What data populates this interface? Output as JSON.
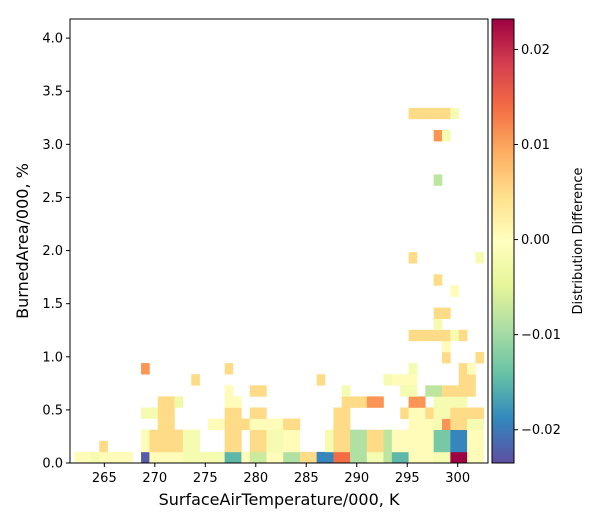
{
  "chart_data": {
    "type": "heatmap",
    "xlabel": "SurfaceAirTemperature/000,  K",
    "ylabel": "BurnedArea/000,  %",
    "colorbar_label": "Distribution Difference",
    "xlim": [
      261.6,
      303.0
    ],
    "ylim": [
      0.0,
      4.18
    ],
    "x_ticks": [
      265,
      270,
      275,
      280,
      285,
      290,
      295,
      300
    ],
    "x_tick_labels": [
      "265",
      "270",
      "275",
      "280",
      "285",
      "290",
      "295",
      "300"
    ],
    "y_ticks": [
      0.0,
      0.5,
      1.0,
      1.5,
      2.0,
      2.5,
      3.0,
      3.5,
      4.0
    ],
    "y_tick_labels": [
      "0.0",
      "0.5",
      "1.0",
      "1.5",
      "2.0",
      "2.5",
      "3.0",
      "3.5",
      "4.0"
    ],
    "colorbar_range": [
      -0.0235,
      0.0232
    ],
    "colorbar_ticks": [
      -0.02,
      -0.01,
      0.0,
      0.01,
      0.02
    ],
    "colorbar_tick_labels": [
      "−0.02",
      "−0.01",
      "0.00",
      "0.01",
      "0.02"
    ],
    "colormap": "Spectral_r",
    "cell_width": 0.828,
    "cell_height": 0.1045,
    "grid": false,
    "cells": [
      {
        "x": 262.014,
        "y": 0.0,
        "v": 0.0005
      },
      {
        "x": 262.842,
        "y": 0.0,
        "v": 0.0005
      },
      {
        "x": 263.67,
        "y": 0.0,
        "v": -0.002
      },
      {
        "x": 264.498,
        "y": 0.0,
        "v": 0.0005
      },
      {
        "x": 265.326,
        "y": 0.0,
        "v": 0.0005
      },
      {
        "x": 266.154,
        "y": 0.0,
        "v": 0.0005
      },
      {
        "x": 266.982,
        "y": 0.0,
        "v": 0.0005
      },
      {
        "x": 268.638,
        "y": 0.0,
        "v": -0.0225
      },
      {
        "x": 269.466,
        "y": 0.0,
        "v": 0.0005
      },
      {
        "x": 270.294,
        "y": 0.0,
        "v": 0.0005
      },
      {
        "x": 271.122,
        "y": 0.0,
        "v": 0.0005
      },
      {
        "x": 271.95,
        "y": 0.0,
        "v": 0.0005
      },
      {
        "x": 272.778,
        "y": 0.0,
        "v": -0.002
      },
      {
        "x": 273.606,
        "y": 0.0,
        "v": -0.002
      },
      {
        "x": 274.434,
        "y": 0.0,
        "v": -0.002
      },
      {
        "x": 275.262,
        "y": 0.0,
        "v": -0.002
      },
      {
        "x": 276.09,
        "y": 0.0,
        "v": -0.002
      },
      {
        "x": 276.918,
        "y": 0.0,
        "v": -0.015
      },
      {
        "x": 277.746,
        "y": 0.0,
        "v": -0.015
      },
      {
        "x": 278.574,
        "y": 0.0,
        "v": 0.0005
      },
      {
        "x": 279.402,
        "y": 0.0,
        "v": -0.007
      },
      {
        "x": 280.23,
        "y": 0.0,
        "v": -0.007
      },
      {
        "x": 281.058,
        "y": 0.0,
        "v": 0.0005
      },
      {
        "x": 281.886,
        "y": 0.0,
        "v": 0.0005
      },
      {
        "x": 282.714,
        "y": 0.0,
        "v": -0.009
      },
      {
        "x": 283.542,
        "y": 0.0,
        "v": -0.009
      },
      {
        "x": 284.37,
        "y": 0.0,
        "v": 0.005
      },
      {
        "x": 285.198,
        "y": 0.0,
        "v": 0.005
      },
      {
        "x": 286.026,
        "y": 0.0,
        "v": -0.019
      },
      {
        "x": 286.854,
        "y": 0.0,
        "v": -0.019
      },
      {
        "x": 287.682,
        "y": 0.0,
        "v": 0.014
      },
      {
        "x": 288.51,
        "y": 0.0,
        "v": 0.014
      },
      {
        "x": 289.338,
        "y": 0.0,
        "v": -0.009
      },
      {
        "x": 290.166,
        "y": 0.0,
        "v": -0.009
      },
      {
        "x": 290.994,
        "y": 0.0,
        "v": -0.002
      },
      {
        "x": 291.822,
        "y": 0.0,
        "v": -0.002
      },
      {
        "x": 292.65,
        "y": 0.0,
        "v": -0.008
      },
      {
        "x": 293.478,
        "y": 0.0,
        "v": -0.015
      },
      {
        "x": 294.306,
        "y": 0.0,
        "v": -0.015
      },
      {
        "x": 295.134,
        "y": 0.0,
        "v": 0.0005
      },
      {
        "x": 295.962,
        "y": 0.0,
        "v": 0.0005
      },
      {
        "x": 296.79,
        "y": 0.0,
        "v": 0.0005
      },
      {
        "x": 297.618,
        "y": 0.0,
        "v": -0.002
      },
      {
        "x": 298.446,
        "y": 0.0,
        "v": -0.002
      },
      {
        "x": 299.274,
        "y": 0.0,
        "v": 0.0232
      },
      {
        "x": 300.102,
        "y": 0.0,
        "v": 0.0232
      },
      {
        "x": 300.93,
        "y": 0.0,
        "v": 0.0005
      },
      {
        "x": 301.758,
        "y": 0.0,
        "v": 0.0005
      },
      {
        "x": 264.498,
        "y": 0.1045,
        "v": 0.005
      },
      {
        "x": 268.638,
        "y": 0.1045,
        "v": 0.0005
      },
      {
        "x": 269.466,
        "y": 0.1045,
        "v": 0.005
      },
      {
        "x": 270.294,
        "y": 0.1045,
        "v": 0.005
      },
      {
        "x": 271.122,
        "y": 0.1045,
        "v": 0.005
      },
      {
        "x": 271.95,
        "y": 0.1045,
        "v": 0.005
      },
      {
        "x": 272.778,
        "y": 0.1045,
        "v": -0.002
      },
      {
        "x": 273.606,
        "y": 0.1045,
        "v": -0.002
      },
      {
        "x": 276.918,
        "y": 0.1045,
        "v": 0.005
      },
      {
        "x": 277.746,
        "y": 0.1045,
        "v": 0.005
      },
      {
        "x": 279.402,
        "y": 0.1045,
        "v": 0.005
      },
      {
        "x": 280.23,
        "y": 0.1045,
        "v": 0.005
      },
      {
        "x": 281.058,
        "y": 0.1045,
        "v": -0.002
      },
      {
        "x": 281.886,
        "y": 0.1045,
        "v": -0.002
      },
      {
        "x": 282.714,
        "y": 0.1045,
        "v": 0.0005
      },
      {
        "x": 283.542,
        "y": 0.1045,
        "v": 0.0005
      },
      {
        "x": 286.854,
        "y": 0.1045,
        "v": -0.002
      },
      {
        "x": 287.682,
        "y": 0.1045,
        "v": 0.005
      },
      {
        "x": 288.51,
        "y": 0.1045,
        "v": 0.005
      },
      {
        "x": 289.338,
        "y": 0.1045,
        "v": -0.009
      },
      {
        "x": 290.166,
        "y": 0.1045,
        "v": -0.009
      },
      {
        "x": 290.994,
        "y": 0.1045,
        "v": 0.005
      },
      {
        "x": 291.822,
        "y": 0.1045,
        "v": 0.005
      },
      {
        "x": 292.65,
        "y": 0.1045,
        "v": -0.008
      },
      {
        "x": 293.478,
        "y": 0.1045,
        "v": 0.0005
      },
      {
        "x": 294.306,
        "y": 0.1045,
        "v": 0.0005
      },
      {
        "x": 295.134,
        "y": 0.1045,
        "v": 0.0005
      },
      {
        "x": 295.962,
        "y": 0.1045,
        "v": 0.0005
      },
      {
        "x": 296.79,
        "y": 0.1045,
        "v": 0.0005
      },
      {
        "x": 297.618,
        "y": 0.1045,
        "v": -0.013
      },
      {
        "x": 298.446,
        "y": 0.1045,
        "v": -0.013
      },
      {
        "x": 299.274,
        "y": 0.1045,
        "v": -0.019
      },
      {
        "x": 300.102,
        "y": 0.1045,
        "v": -0.019
      },
      {
        "x": 300.93,
        "y": 0.1045,
        "v": 0.0005
      },
      {
        "x": 301.758,
        "y": 0.1045,
        "v": 0.0005
      },
      {
        "x": 268.638,
        "y": 0.209,
        "v": 0.0005
      },
      {
        "x": 269.466,
        "y": 0.209,
        "v": 0.005
      },
      {
        "x": 270.294,
        "y": 0.209,
        "v": 0.005
      },
      {
        "x": 271.122,
        "y": 0.209,
        "v": 0.005
      },
      {
        "x": 271.95,
        "y": 0.209,
        "v": 0.005
      },
      {
        "x": 272.778,
        "y": 0.209,
        "v": -0.002
      },
      {
        "x": 273.606,
        "y": 0.209,
        "v": -0.002
      },
      {
        "x": 276.918,
        "y": 0.209,
        "v": 0.005
      },
      {
        "x": 277.746,
        "y": 0.209,
        "v": 0.005
      },
      {
        "x": 279.402,
        "y": 0.209,
        "v": 0.005
      },
      {
        "x": 280.23,
        "y": 0.209,
        "v": 0.005
      },
      {
        "x": 281.058,
        "y": 0.209,
        "v": -0.002
      },
      {
        "x": 281.886,
        "y": 0.209,
        "v": -0.002
      },
      {
        "x": 282.714,
        "y": 0.209,
        "v": 0.0005
      },
      {
        "x": 283.542,
        "y": 0.209,
        "v": 0.0005
      },
      {
        "x": 286.854,
        "y": 0.209,
        "v": -0.002
      },
      {
        "x": 287.682,
        "y": 0.209,
        "v": 0.005
      },
      {
        "x": 288.51,
        "y": 0.209,
        "v": 0.005
      },
      {
        "x": 289.338,
        "y": 0.209,
        "v": -0.009
      },
      {
        "x": 290.166,
        "y": 0.209,
        "v": -0.009
      },
      {
        "x": 290.994,
        "y": 0.209,
        "v": 0.005
      },
      {
        "x": 291.822,
        "y": 0.209,
        "v": 0.005
      },
      {
        "x": 292.65,
        "y": 0.209,
        "v": -0.008
      },
      {
        "x": 293.478,
        "y": 0.209,
        "v": 0.0005
      },
      {
        "x": 294.306,
        "y": 0.209,
        "v": 0.0005
      },
      {
        "x": 295.134,
        "y": 0.209,
        "v": 0.0005
      },
      {
        "x": 295.962,
        "y": 0.209,
        "v": 0.0005
      },
      {
        "x": 296.79,
        "y": 0.209,
        "v": 0.0005
      },
      {
        "x": 297.618,
        "y": 0.209,
        "v": -0.013
      },
      {
        "x": 298.446,
        "y": 0.209,
        "v": -0.013
      },
      {
        "x": 299.274,
        "y": 0.209,
        "v": -0.019
      },
      {
        "x": 300.102,
        "y": 0.209,
        "v": -0.019
      },
      {
        "x": 300.93,
        "y": 0.209,
        "v": 0.0005
      },
      {
        "x": 301.758,
        "y": 0.209,
        "v": 0.0005
      },
      {
        "x": 270.294,
        "y": 0.3135,
        "v": 0.005
      },
      {
        "x": 271.122,
        "y": 0.3135,
        "v": 0.005
      },
      {
        "x": 275.262,
        "y": 0.3135,
        "v": 0.0005
      },
      {
        "x": 276.09,
        "y": 0.3135,
        "v": 0.0005
      },
      {
        "x": 276.918,
        "y": 0.3135,
        "v": 0.005
      },
      {
        "x": 277.746,
        "y": 0.3135,
        "v": 0.005
      },
      {
        "x": 278.574,
        "y": 0.3135,
        "v": 0.005
      },
      {
        "x": 279.402,
        "y": 0.3135,
        "v": 0.0005
      },
      {
        "x": 280.23,
        "y": 0.3135,
        "v": 0.0005
      },
      {
        "x": 281.058,
        "y": 0.3135,
        "v": 0.0005
      },
      {
        "x": 281.886,
        "y": 0.3135,
        "v": 0.0005
      },
      {
        "x": 282.714,
        "y": 0.3135,
        "v": 0.005
      },
      {
        "x": 283.542,
        "y": 0.3135,
        "v": 0.005
      },
      {
        "x": 287.682,
        "y": 0.3135,
        "v": 0.005
      },
      {
        "x": 288.51,
        "y": 0.3135,
        "v": 0.005
      },
      {
        "x": 295.134,
        "y": 0.3135,
        "v": 0.0005
      },
      {
        "x": 295.962,
        "y": 0.3135,
        "v": 0.0005
      },
      {
        "x": 296.79,
        "y": 0.3135,
        "v": 0.0005
      },
      {
        "x": 297.618,
        "y": 0.3135,
        "v": -0.002
      },
      {
        "x": 298.446,
        "y": 0.3135,
        "v": 0.011
      },
      {
        "x": 299.274,
        "y": 0.3135,
        "v": 0.005
      },
      {
        "x": 300.102,
        "y": 0.3135,
        "v": 0.005
      },
      {
        "x": 300.93,
        "y": 0.3135,
        "v": -0.002
      },
      {
        "x": 301.758,
        "y": 0.3135,
        "v": -0.002
      },
      {
        "x": 268.638,
        "y": 0.418,
        "v": -0.002
      },
      {
        "x": 269.466,
        "y": 0.418,
        "v": -0.002
      },
      {
        "x": 270.294,
        "y": 0.418,
        "v": 0.005
      },
      {
        "x": 271.122,
        "y": 0.418,
        "v": 0.005
      },
      {
        "x": 276.918,
        "y": 0.418,
        "v": 0.005
      },
      {
        "x": 277.746,
        "y": 0.418,
        "v": 0.005
      },
      {
        "x": 279.402,
        "y": 0.418,
        "v": 0.005
      },
      {
        "x": 280.23,
        "y": 0.418,
        "v": 0.005
      },
      {
        "x": 287.682,
        "y": 0.418,
        "v": 0.005
      },
      {
        "x": 288.51,
        "y": 0.418,
        "v": 0.005
      },
      {
        "x": 294.306,
        "y": 0.418,
        "v": 0.005
      },
      {
        "x": 295.134,
        "y": 0.418,
        "v": 0.0005
      },
      {
        "x": 295.962,
        "y": 0.418,
        "v": 0.0005
      },
      {
        "x": 296.79,
        "y": 0.418,
        "v": 0.005
      },
      {
        "x": 297.618,
        "y": 0.418,
        "v": -0.002
      },
      {
        "x": 298.446,
        "y": 0.418,
        "v": -0.002
      },
      {
        "x": 299.274,
        "y": 0.418,
        "v": 0.005
      },
      {
        "x": 300.102,
        "y": 0.418,
        "v": 0.005
      },
      {
        "x": 300.93,
        "y": 0.418,
        "v": 0.005
      },
      {
        "x": 301.758,
        "y": 0.418,
        "v": 0.005
      },
      {
        "x": 270.294,
        "y": 0.5225,
        "v": 0.005
      },
      {
        "x": 271.122,
        "y": 0.5225,
        "v": 0.005
      },
      {
        "x": 271.95,
        "y": 0.5225,
        "v": -0.003
      },
      {
        "x": 276.918,
        "y": 0.5225,
        "v": 0.0005
      },
      {
        "x": 277.746,
        "y": 0.5225,
        "v": 0.0005
      },
      {
        "x": 288.51,
        "y": 0.5225,
        "v": 0.005
      },
      {
        "x": 289.338,
        "y": 0.5225,
        "v": 0.005
      },
      {
        "x": 290.166,
        "y": 0.5225,
        "v": 0.005
      },
      {
        "x": 290.994,
        "y": 0.5225,
        "v": 0.011
      },
      {
        "x": 291.822,
        "y": 0.5225,
        "v": 0.011
      },
      {
        "x": 295.134,
        "y": 0.5225,
        "v": 0.011
      },
      {
        "x": 295.962,
        "y": 0.5225,
        "v": 0.011
      },
      {
        "x": 297.618,
        "y": 0.5225,
        "v": -0.002
      },
      {
        "x": 298.446,
        "y": 0.5225,
        "v": -0.002
      },
      {
        "x": 299.274,
        "y": 0.5225,
        "v": -0.002
      },
      {
        "x": 300.102,
        "y": 0.5225,
        "v": -0.002
      },
      {
        "x": 276.918,
        "y": 0.627,
        "v": 0.0005
      },
      {
        "x": 279.402,
        "y": 0.627,
        "v": 0.005
      },
      {
        "x": 280.23,
        "y": 0.627,
        "v": 0.005
      },
      {
        "x": 288.51,
        "y": 0.627,
        "v": -0.002
      },
      {
        "x": 294.306,
        "y": 0.627,
        "v": -0.002
      },
      {
        "x": 295.134,
        "y": 0.627,
        "v": -0.002
      },
      {
        "x": 296.79,
        "y": 0.627,
        "v": -0.008
      },
      {
        "x": 297.618,
        "y": 0.627,
        "v": -0.008
      },
      {
        "x": 298.446,
        "y": 0.627,
        "v": 0.005
      },
      {
        "x": 299.274,
        "y": 0.627,
        "v": 0.005
      },
      {
        "x": 300.102,
        "y": 0.627,
        "v": 0.005
      },
      {
        "x": 300.93,
        "y": 0.627,
        "v": 0.005
      },
      {
        "x": 273.606,
        "y": 0.7315,
        "v": 0.005
      },
      {
        "x": 286.026,
        "y": 0.7315,
        "v": 0.005
      },
      {
        "x": 292.65,
        "y": 0.7315,
        "v": -0.002
      },
      {
        "x": 293.478,
        "y": 0.7315,
        "v": 0.0005
      },
      {
        "x": 294.306,
        "y": 0.7315,
        "v": 0.0005
      },
      {
        "x": 295.134,
        "y": 0.7315,
        "v": 0.0005
      },
      {
        "x": 300.102,
        "y": 0.7315,
        "v": 0.005
      },
      {
        "x": 300.93,
        "y": 0.7315,
        "v": 0.005
      },
      {
        "x": 268.638,
        "y": 0.836,
        "v": 0.011
      },
      {
        "x": 276.918,
        "y": 0.836,
        "v": 0.005
      },
      {
        "x": 295.134,
        "y": 0.836,
        "v": -0.002
      },
      {
        "x": 300.102,
        "y": 0.836,
        "v": 0.005
      },
      {
        "x": 300.93,
        "y": 0.836,
        "v": 0.0005
      },
      {
        "x": 298.446,
        "y": 0.9405,
        "v": 0.005
      },
      {
        "x": 301.758,
        "y": 0.9405,
        "v": 0.005
      },
      {
        "x": 298.446,
        "y": 1.045,
        "v": 0.0005
      },
      {
        "x": 295.134,
        "y": 1.1495,
        "v": 0.005
      },
      {
        "x": 295.962,
        "y": 1.1495,
        "v": 0.005
      },
      {
        "x": 296.79,
        "y": 1.1495,
        "v": 0.005
      },
      {
        "x": 297.618,
        "y": 1.1495,
        "v": 0.005
      },
      {
        "x": 298.446,
        "y": 1.1495,
        "v": 0.005
      },
      {
        "x": 299.274,
        "y": 1.1495,
        "v": -0.002
      },
      {
        "x": 300.102,
        "y": 1.1495,
        "v": 0.005
      },
      {
        "x": 297.618,
        "y": 1.254,
        "v": -0.002
      },
      {
        "x": 297.618,
        "y": 1.3585,
        "v": 0.005
      },
      {
        "x": 298.446,
        "y": 1.3585,
        "v": 0.005
      },
      {
        "x": 299.274,
        "y": 1.5675,
        "v": 0.0005
      },
      {
        "x": 297.618,
        "y": 1.672,
        "v": 0.005
      },
      {
        "x": 295.134,
        "y": 1.881,
        "v": 0.005
      },
      {
        "x": 301.758,
        "y": 1.881,
        "v": -0.002
      },
      {
        "x": 297.618,
        "y": 2.6125,
        "v": -0.008
      },
      {
        "x": 297.618,
        "y": 3.0305,
        "v": 0.011
      },
      {
        "x": 298.446,
        "y": 3.0305,
        "v": -0.002
      },
      {
        "x": 295.134,
        "y": 3.2395,
        "v": 0.005
      },
      {
        "x": 295.962,
        "y": 3.2395,
        "v": 0.005
      },
      {
        "x": 296.79,
        "y": 3.2395,
        "v": 0.005
      },
      {
        "x": 297.618,
        "y": 3.2395,
        "v": 0.005
      },
      {
        "x": 298.446,
        "y": 3.2395,
        "v": 0.005
      },
      {
        "x": 299.274,
        "y": 3.2395,
        "v": -0.002
      }
    ]
  }
}
